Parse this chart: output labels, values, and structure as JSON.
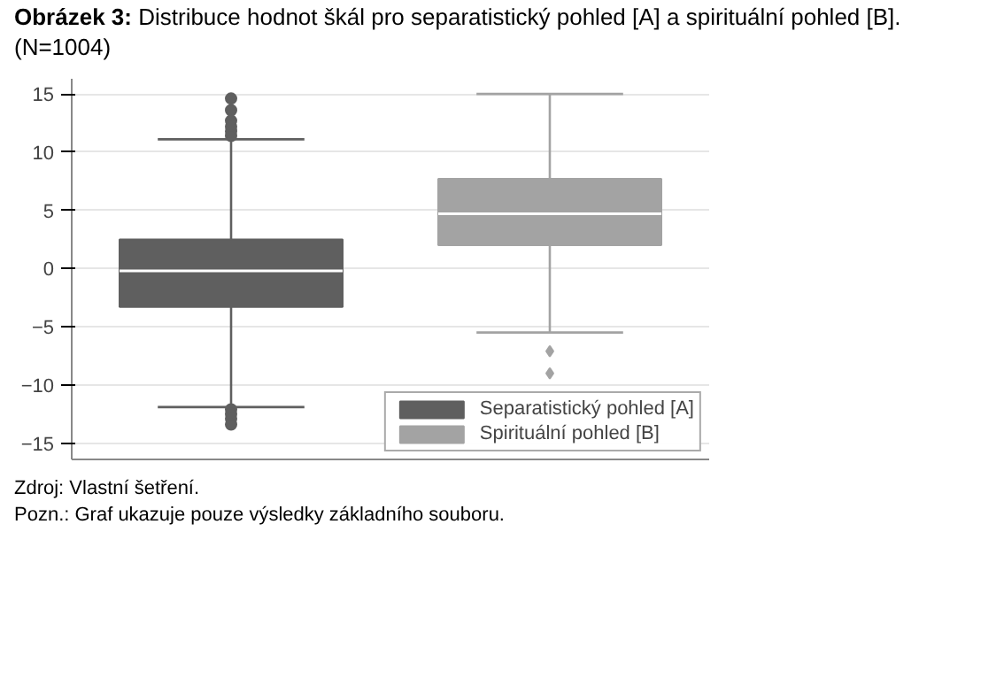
{
  "chart_data": {
    "type": "box",
    "title": "Obrázek 3: Distribuce hodnot škál pro separatistický pohled [A] a spirituální pohled [B]. (N=1004)",
    "categories": [
      null,
      null
    ],
    "series": [
      {
        "name": "Separatistický pohled [A]",
        "color": "#5f5f5f",
        "marker": "circle",
        "boxes": [
          {
            "low": -11.9,
            "q1": -3.3,
            "median": -0.2,
            "q3": 2.5,
            "high": 11.1,
            "outliers": [
              14.6,
              13.6,
              12.7,
              12.2,
              11.8,
              11.4,
              -12.1,
              -12.5,
              -12.9,
              -13.4
            ]
          },
          null
        ]
      },
      {
        "name": "Spirituální pohled [B]",
        "color": "#a3a3a3",
        "marker": "diamond",
        "boxes": [
          null,
          {
            "low": -5.5,
            "q1": 2.0,
            "median": 4.7,
            "q3": 7.7,
            "high": 15,
            "outliers": [
              -7.1,
              -9.0
            ]
          }
        ]
      }
    ],
    "ylim": [
      -16.4,
      16.3
    ],
    "yticks": [
      -15,
      -10,
      -5,
      0,
      5,
      10,
      15
    ],
    "grid": "y",
    "legend": "bottom",
    "annotations": [
      "Zdroj: Vlastní šetření.",
      "Pozn.: Graf ukazuje pouze výsledky základního souboru."
    ]
  }
}
